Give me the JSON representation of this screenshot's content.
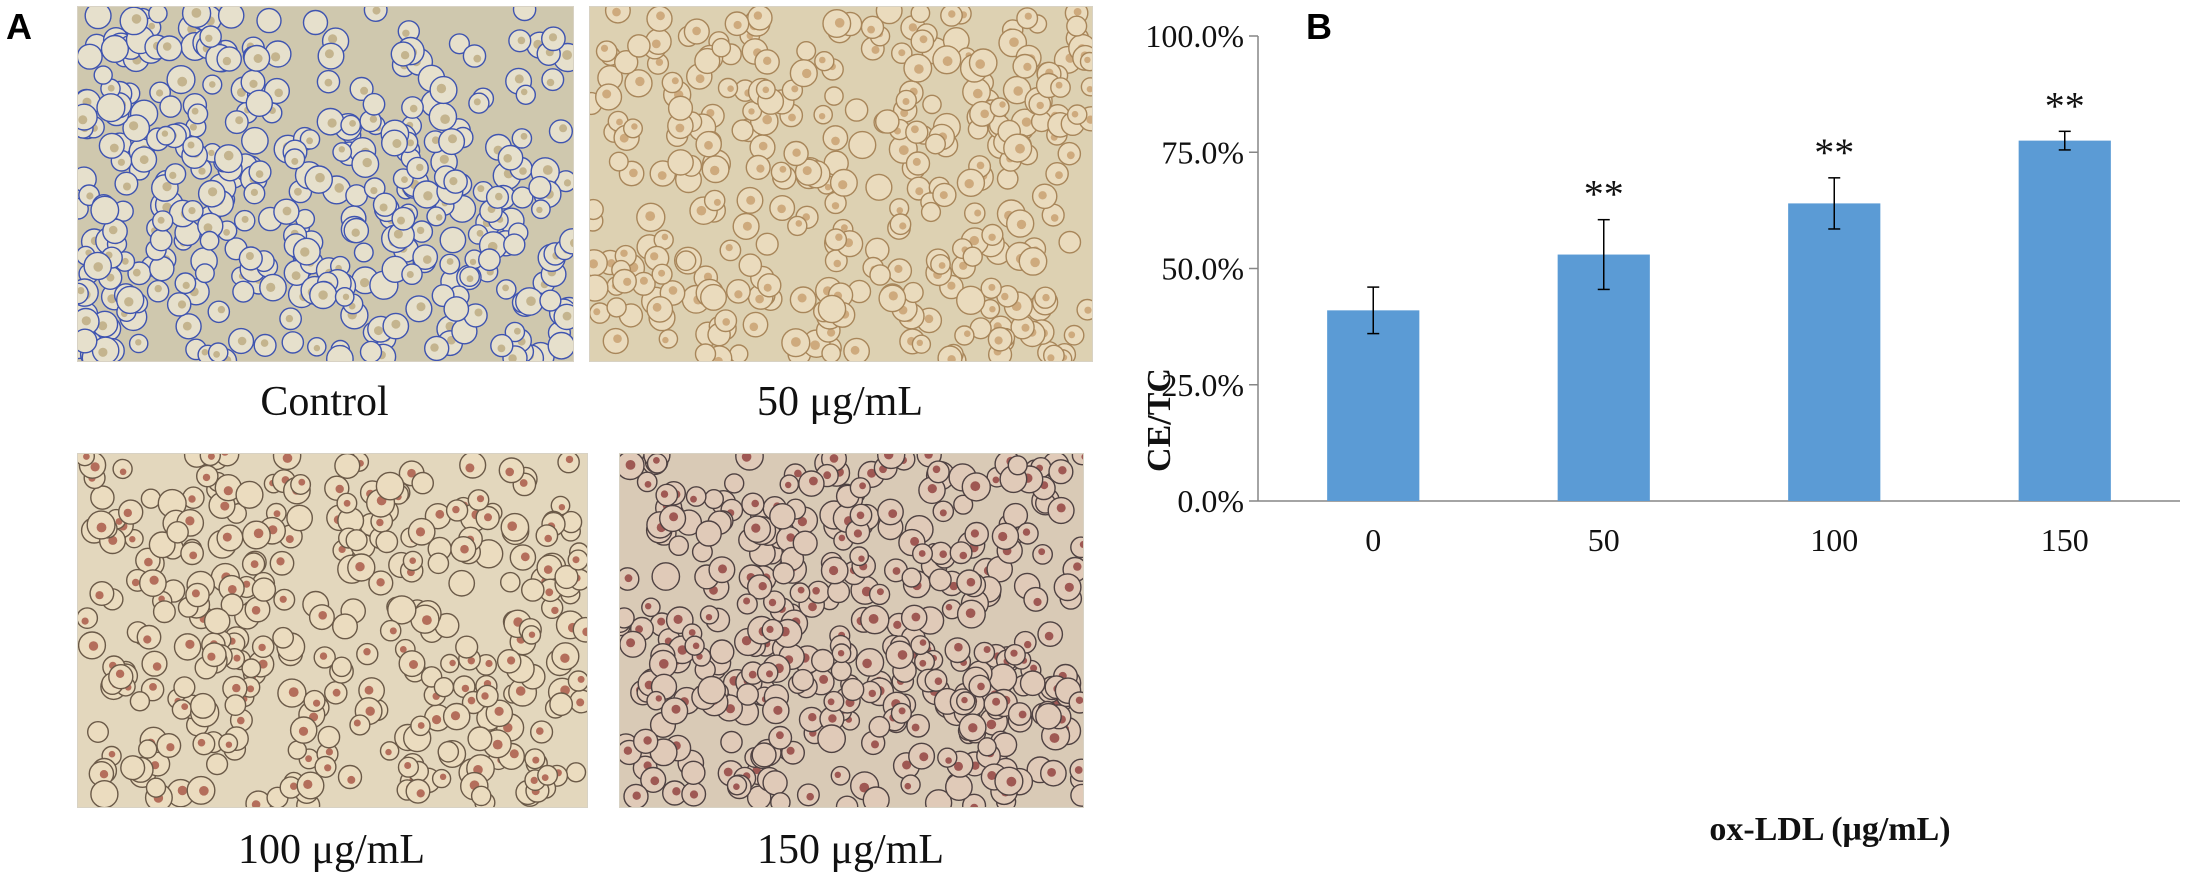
{
  "panel_a": {
    "letter": "A",
    "images": [
      {
        "caption": "Control",
        "cell_fill": "#e6e0cc",
        "cell_stroke": "#3f54b0",
        "cell_core": "#b8a67a",
        "density": 430
      },
      {
        "caption": "50 μg/mL",
        "cell_fill": "#eadbbd",
        "cell_stroke": "#a8865a",
        "cell_core": "#c49a68",
        "density": 320
      },
      {
        "caption": "100 μg/mL",
        "cell_fill": "#ebdcbf",
        "cell_stroke": "#6b5a48",
        "cell_core": "#a2493a",
        "density": 330
      },
      {
        "caption": "150 μg/mL",
        "cell_fill": "#e0cab8",
        "cell_stroke": "#4f4242",
        "cell_core": "#8a3232",
        "density": 380
      }
    ]
  },
  "panel_b": {
    "letter": "B",
    "bar_color": "#5b9bd5"
  },
  "chart_data": {
    "type": "bar",
    "categories": [
      "0",
      "50",
      "100",
      "150"
    ],
    "values": [
      0.41,
      0.53,
      0.64,
      0.775
    ],
    "errors": [
      0.05,
      0.075,
      0.055,
      0.02
    ],
    "significance": [
      "",
      "**",
      "**",
      "**"
    ],
    "ylim": [
      0,
      1.0
    ],
    "yticks": [
      0,
      0.25,
      0.5,
      0.75,
      1.0
    ],
    "ytick_labels": [
      "0.0%",
      "25.0%",
      "50.0%",
      "75.0%",
      "100.0%"
    ],
    "ylabel": "CE/TC",
    "xlabel": "ox-LDL (μg/mL)",
    "title": "",
    "grid": false
  }
}
